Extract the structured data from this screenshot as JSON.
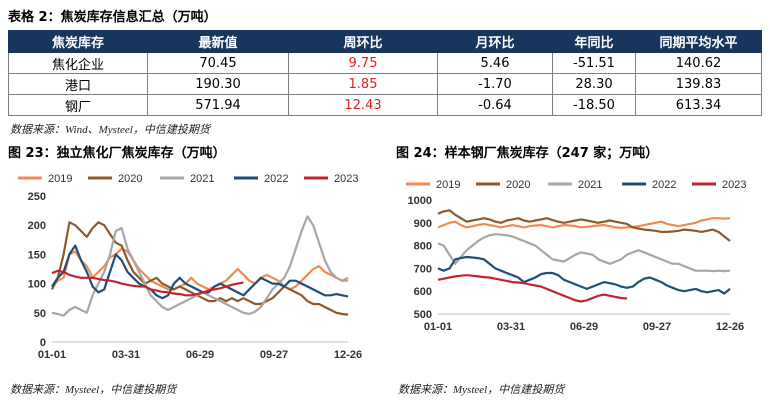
{
  "table_title": "表格 2：焦炭库存信息汇总（万吨）",
  "table": {
    "headers": [
      "焦炭库存",
      "最新值",
      "周环比",
      "月环比",
      "年同比",
      "同期平均水平"
    ],
    "rows": [
      {
        "name": "焦化企业",
        "latest": "70.45",
        "wow": "9.75",
        "mom": "5.46",
        "yoy": "-51.51",
        "avg": "140.62"
      },
      {
        "name": "港口",
        "latest": "190.30",
        "wow": "1.85",
        "mom": "-1.70",
        "yoy": "28.30",
        "avg": "139.83"
      },
      {
        "name": "钢厂",
        "latest": "571.94",
        "wow": "12.43",
        "mom": "-0.64",
        "yoy": "-18.50",
        "avg": "613.34"
      }
    ]
  },
  "table_source": "数据来源：Wind、Mysteel，中信建投期货",
  "chart_source": "数据来源：Mysteel，中信建投期货",
  "colors": {
    "y2019": "#f08a55",
    "y2020": "#8c5a2b",
    "y2021": "#a6a6a6",
    "y2022": "#1f4e79",
    "y2023": "#c0252d"
  },
  "chart_data": [
    {
      "type": "line",
      "title": "图 23：独立焦化厂焦炭库存（万吨）",
      "x_ticks": [
        "01-01",
        "03-31",
        "06-29",
        "09-27",
        "12-26"
      ],
      "ylim": [
        0,
        250
      ],
      "y_ticks": [
        "0",
        "50",
        "100",
        "150",
        "200",
        "250"
      ],
      "legend": [
        "2019",
        "2020",
        "2021",
        "2022",
        "2023"
      ],
      "series": [
        {
          "name": "2019",
          "values": [
            95,
            105,
            110,
            150,
            155,
            140,
            130,
            110,
            120,
            130,
            145,
            150,
            160,
            155,
            140,
            125,
            115,
            105,
            100,
            95,
            90,
            90,
            95,
            100,
            110,
            100,
            95,
            90,
            95,
            100,
            105,
            115,
            125,
            115,
            105,
            100,
            110,
            115,
            110,
            105,
            95,
            90,
            95,
            105,
            115,
            125,
            130,
            120,
            115,
            110,
            105,
            110
          ]
        },
        {
          "name": "2020",
          "values": [
            90,
            110,
            150,
            205,
            200,
            190,
            180,
            195,
            205,
            200,
            185,
            170,
            165,
            140,
            120,
            110,
            100,
            105,
            110,
            100,
            95,
            90,
            95,
            90,
            85,
            80,
            75,
            70,
            70,
            75,
            70,
            75,
            70,
            75,
            70,
            65,
            65,
            70,
            75,
            85,
            95,
            90,
            85,
            80,
            70,
            65,
            65,
            60,
            55,
            50,
            48,
            47
          ]
        },
        {
          "name": "2021",
          "values": [
            50,
            48,
            45,
            55,
            60,
            55,
            50,
            80,
            100,
            120,
            150,
            190,
            195,
            160,
            140,
            120,
            100,
            80,
            70,
            60,
            55,
            60,
            65,
            70,
            75,
            80,
            85,
            80,
            75,
            70,
            65,
            60,
            55,
            50,
            48,
            52,
            60,
            75,
            90,
            100,
            110,
            130,
            160,
            190,
            215,
            200,
            170,
            140,
            120,
            110,
            105,
            105
          ]
        },
        {
          "name": "2022",
          "values": [
            95,
            110,
            120,
            150,
            165,
            140,
            120,
            95,
            85,
            90,
            120,
            150,
            140,
            120,
            110,
            100,
            95,
            90,
            80,
            75,
            80,
            100,
            110,
            100,
            95,
            90,
            85,
            85,
            95,
            100,
            95,
            90,
            85,
            80,
            90,
            100,
            110,
            105,
            100,
            100,
            95,
            105,
            105,
            100,
            95,
            90,
            85,
            80,
            80,
            82,
            80,
            78
          ]
        },
        {
          "name": "2023",
          "values": [
            118,
            122,
            120,
            115,
            112,
            110,
            110,
            110,
            108,
            106,
            105,
            103,
            100,
            98,
            96,
            95,
            95,
            90,
            88,
            86,
            85,
            83,
            82,
            80,
            80,
            82,
            85,
            88,
            90,
            92,
            95,
            98,
            100,
            102
          ]
        }
      ]
    },
    {
      "type": "line",
      "title": "图 24：样本钢厂焦炭库存（247 家；万吨）",
      "x_ticks": [
        "01-01",
        "03-31",
        "06-29",
        "09-27",
        "12-26"
      ],
      "ylim": [
        500,
        1000
      ],
      "y_ticks": [
        "500",
        "600",
        "700",
        "800",
        "900",
        "1000"
      ],
      "legend": [
        "2019",
        "2020",
        "2021",
        "2022",
        "2023"
      ],
      "series": [
        {
          "name": "2019",
          "values": [
            880,
            890,
            900,
            905,
            890,
            880,
            885,
            890,
            895,
            890,
            885,
            880,
            885,
            890,
            885,
            880,
            885,
            888,
            890,
            885,
            880,
            885,
            890,
            888,
            885,
            880,
            882,
            885,
            888,
            890,
            885,
            880,
            878,
            880,
            882,
            885,
            890,
            895,
            900,
            905,
            895,
            890,
            885,
            890,
            895,
            900,
            910,
            915,
            920,
            920,
            918,
            920
          ]
        },
        {
          "name": "2020",
          "values": [
            940,
            950,
            955,
            935,
            920,
            905,
            910,
            915,
            920,
            915,
            905,
            900,
            910,
            915,
            920,
            910,
            905,
            910,
            915,
            920,
            912,
            905,
            900,
            905,
            910,
            915,
            910,
            905,
            900,
            905,
            910,
            905,
            900,
            895,
            880,
            875,
            870,
            868,
            865,
            860,
            860,
            862,
            865,
            870,
            868,
            865,
            860,
            865,
            870,
            860,
            840,
            820
          ]
        },
        {
          "name": "2021",
          "values": [
            810,
            800,
            760,
            720,
            750,
            780,
            800,
            820,
            835,
            845,
            850,
            848,
            845,
            840,
            830,
            820,
            810,
            800,
            780,
            760,
            740,
            735,
            730,
            745,
            760,
            770,
            765,
            760,
            740,
            730,
            720,
            730,
            740,
            760,
            770,
            780,
            770,
            760,
            750,
            740,
            730,
            720,
            720,
            710,
            700,
            690,
            690,
            690,
            688,
            690,
            688,
            690
          ]
        },
        {
          "name": "2022",
          "values": [
            700,
            690,
            700,
            740,
            745,
            750,
            748,
            745,
            740,
            720,
            700,
            690,
            680,
            670,
            660,
            640,
            650,
            660,
            675,
            680,
            680,
            670,
            650,
            640,
            630,
            620,
            610,
            620,
            630,
            640,
            635,
            630,
            620,
            615,
            620,
            640,
            655,
            660,
            650,
            640,
            625,
            615,
            605,
            600,
            605,
            610,
            600,
            595,
            600,
            605,
            590,
            610
          ]
        },
        {
          "name": "2023",
          "values": [
            650,
            655,
            660,
            665,
            668,
            670,
            668,
            665,
            662,
            660,
            655,
            650,
            645,
            640,
            638,
            635,
            630,
            625,
            620,
            610,
            600,
            590,
            580,
            570,
            560,
            555,
            560,
            570,
            580,
            585,
            580,
            575,
            570,
            568
          ]
        }
      ]
    }
  ]
}
